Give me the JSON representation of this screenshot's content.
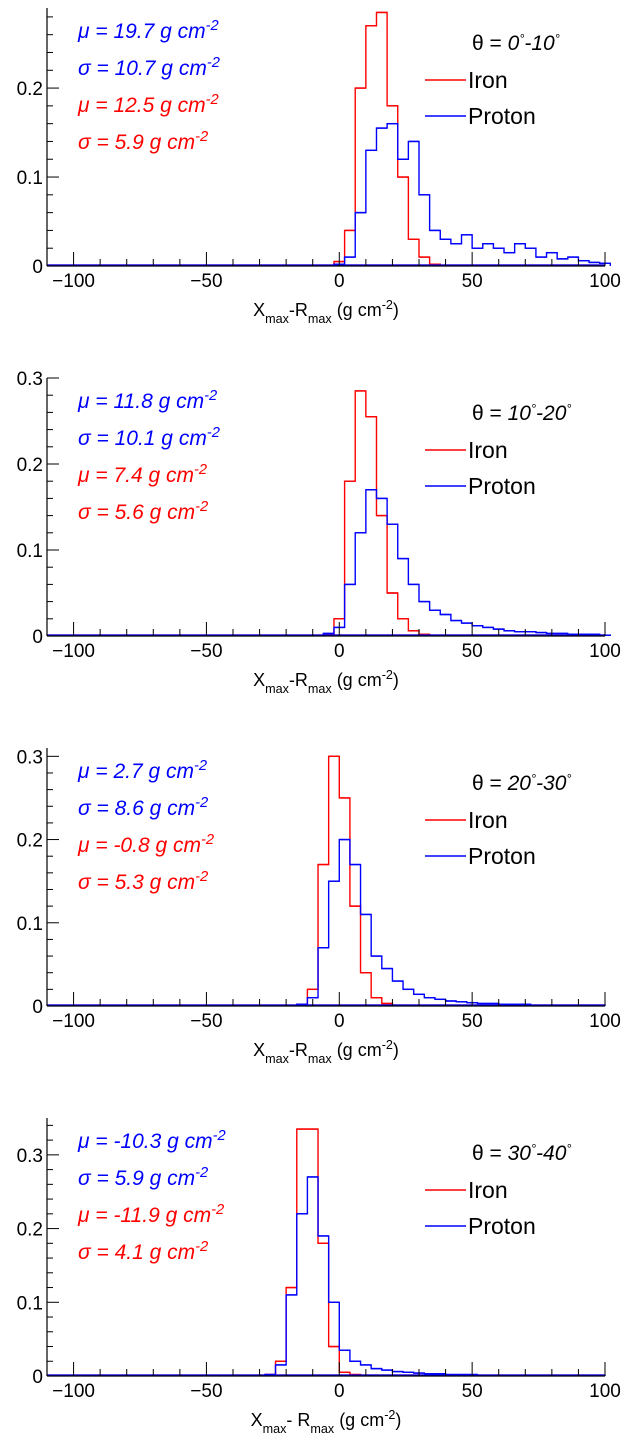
{
  "colors": {
    "iron": "#ff0000",
    "proton": "#0000ff",
    "axis": "#000000"
  },
  "chart_data": [
    {
      "type": "histogram",
      "theta_label": {
        "prefix": "θ = ",
        "value": "0°-10°"
      },
      "xlabel": "Xmax-Rmax (g cm-2)",
      "xlim": [
        -110,
        100
      ],
      "ylim": [
        0,
        0.29
      ],
      "x_ticks": [
        -100,
        -50,
        0,
        50,
        100
      ],
      "y_ticks": [
        0,
        0.1,
        0.2
      ],
      "y_tick_labels": [
        "0",
        "0.1",
        "0.2"
      ],
      "stats": [
        {
          "text": "μ = 19.7 g cm-2",
          "series": "Proton"
        },
        {
          "text": "σ = 10.7 g cm-2",
          "series": "Proton"
        },
        {
          "text": "μ = 12.5 g cm-2",
          "series": "Iron"
        },
        {
          "text": "σ = 5.9 g cm-2",
          "series": "Iron"
        }
      ],
      "bin_width": 4,
      "series": [
        {
          "name": "Iron",
          "bins_x_low": [
            -2,
            2,
            6,
            10,
            14,
            18,
            22,
            26,
            30,
            34
          ],
          "values": [
            0.005,
            0.04,
            0.2,
            0.27,
            0.285,
            0.18,
            0.1,
            0.03,
            0.01,
            0.002
          ]
        },
        {
          "name": "Proton",
          "bins_x_low": [
            -2,
            2,
            6,
            10,
            14,
            18,
            22,
            26,
            30,
            34,
            38,
            42,
            46,
            50,
            54,
            58,
            62,
            66,
            70,
            74,
            78,
            82,
            86,
            90,
            94,
            98
          ],
          "values": [
            0.002,
            0.01,
            0.06,
            0.13,
            0.155,
            0.16,
            0.12,
            0.14,
            0.08,
            0.04,
            0.03,
            0.025,
            0.035,
            0.02,
            0.025,
            0.02,
            0.015,
            0.025,
            0.02,
            0.01,
            0.015,
            0.008,
            0.01,
            0.006,
            0.004,
            0.003
          ]
        }
      ]
    },
    {
      "type": "histogram",
      "theta_label": {
        "prefix": "θ = ",
        "value": "10°-20°"
      },
      "xlabel": "Xmax-Rmax (g cm-2)",
      "xlim": [
        -110,
        100
      ],
      "ylim": [
        0,
        0.3
      ],
      "x_ticks": [
        -100,
        -50,
        0,
        50,
        100
      ],
      "y_ticks": [
        0,
        0.1,
        0.2,
        0.3
      ],
      "y_tick_labels": [
        "0",
        "0.1",
        "0.2",
        "0.3"
      ],
      "stats": [
        {
          "text": "μ = 11.8 g cm-2",
          "series": "Proton"
        },
        {
          "text": "σ = 10.1 g cm-2",
          "series": "Proton"
        },
        {
          "text": "μ = 7.4 g cm-2",
          "series": "Iron"
        },
        {
          "text": "σ = 5.6 g cm-2",
          "series": "Iron"
        }
      ],
      "bin_width": 4,
      "series": [
        {
          "name": "Iron",
          "bins_x_low": [
            -6,
            -2,
            2,
            6,
            10,
            14,
            18,
            22,
            26,
            30
          ],
          "values": [
            0.002,
            0.02,
            0.18,
            0.285,
            0.255,
            0.14,
            0.05,
            0.02,
            0.006,
            0.002
          ]
        },
        {
          "name": "Proton",
          "bins_x_low": [
            -6,
            -2,
            2,
            6,
            10,
            14,
            18,
            22,
            26,
            30,
            34,
            38,
            42,
            46,
            50,
            54,
            58,
            62,
            66,
            70,
            74,
            78,
            82,
            86,
            90,
            94,
            98
          ],
          "values": [
            0.003,
            0.01,
            0.06,
            0.12,
            0.17,
            0.16,
            0.13,
            0.09,
            0.06,
            0.04,
            0.03,
            0.025,
            0.018,
            0.015,
            0.012,
            0.01,
            0.008,
            0.006,
            0.005,
            0.005,
            0.004,
            0.003,
            0.003,
            0.002,
            0.002,
            0.002,
            0.001
          ]
        }
      ]
    },
    {
      "type": "histogram",
      "theta_label": {
        "prefix": "θ = ",
        "value": "20°-30°"
      },
      "xlabel": "Xmax-Rmax (g cm-2)",
      "xlim": [
        -110,
        100
      ],
      "ylim": [
        0,
        0.31
      ],
      "x_ticks": [
        -100,
        -50,
        0,
        50,
        100
      ],
      "y_ticks": [
        0,
        0.1,
        0.2,
        0.3
      ],
      "y_tick_labels": [
        "0",
        "0.1",
        "0.2",
        "0.3"
      ],
      "stats": [
        {
          "text": "μ = 2.7 g cm-2",
          "series": "Proton"
        },
        {
          "text": "σ = 8.6 g cm-2",
          "series": "Proton"
        },
        {
          "text": "μ = -0.8 g cm-2",
          "series": "Iron"
        },
        {
          "text": "σ = 5.3 g cm-2",
          "series": "Iron"
        }
      ],
      "bin_width": 4,
      "series": [
        {
          "name": "Iron",
          "bins_x_low": [
            -16,
            -12,
            -8,
            -4,
            0,
            4,
            8,
            12,
            16,
            20
          ],
          "values": [
            0.002,
            0.02,
            0.17,
            0.3,
            0.25,
            0.12,
            0.04,
            0.01,
            0.003,
            0.001
          ]
        },
        {
          "name": "Proton",
          "bins_x_low": [
            -16,
            -12,
            -8,
            -4,
            0,
            4,
            8,
            12,
            16,
            20,
            24,
            28,
            32,
            36,
            40,
            44,
            48,
            52,
            56,
            60,
            64,
            68,
            72,
            76,
            80,
            84,
            88,
            92,
            96
          ],
          "values": [
            0.002,
            0.01,
            0.07,
            0.15,
            0.2,
            0.17,
            0.11,
            0.06,
            0.045,
            0.03,
            0.02,
            0.014,
            0.01,
            0.008,
            0.006,
            0.005,
            0.004,
            0.003,
            0.003,
            0.002,
            0.002,
            0.002,
            0.001,
            0.001,
            0.001,
            0.001,
            0.001,
            0.001,
            0.001
          ]
        }
      ]
    },
    {
      "type": "histogram",
      "theta_label": {
        "prefix": "θ = ",
        "value": "30°-40°"
      },
      "xlabel": "Xmax- Rmax (g cm-2)",
      "xlim": [
        -110,
        100
      ],
      "ylim": [
        0,
        0.35
      ],
      "x_ticks": [
        -100,
        -50,
        0,
        50,
        100
      ],
      "y_ticks": [
        0,
        0.1,
        0.2,
        0.3
      ],
      "y_tick_labels": [
        "0",
        "0.1",
        "0.2",
        "0.3"
      ],
      "stats": [
        {
          "text": "μ = -10.3 g cm-2",
          "series": "Proton"
        },
        {
          "text": "σ = 5.9 g cm-2",
          "series": "Proton"
        },
        {
          "text": "μ = -11.9 g cm-2",
          "series": "Iron"
        },
        {
          "text": "σ = 4.1 g cm-2",
          "series": "Iron"
        }
      ],
      "bin_width": 4,
      "series": [
        {
          "name": "Iron",
          "bins_x_low": [
            -28,
            -24,
            -20,
            -16,
            -12,
            -8,
            -4,
            0,
            4
          ],
          "values": [
            0.002,
            0.02,
            0.12,
            0.335,
            0.335,
            0.18,
            0.04,
            0.005,
            0.002
          ]
        },
        {
          "name": "Proton",
          "bins_x_low": [
            -28,
            -24,
            -20,
            -16,
            -12,
            -8,
            -4,
            0,
            4,
            8,
            12,
            16,
            20,
            24,
            28,
            32,
            36,
            40,
            44,
            48,
            52,
            56,
            60,
            64,
            68,
            72,
            76,
            80,
            84,
            88,
            92,
            96
          ],
          "values": [
            0.002,
            0.015,
            0.11,
            0.22,
            0.27,
            0.19,
            0.1,
            0.035,
            0.02,
            0.015,
            0.01,
            0.008,
            0.006,
            0.005,
            0.004,
            0.003,
            0.003,
            0.002,
            0.002,
            0.002,
            0.001,
            0.001,
            0.001,
            0.001,
            0.001,
            0.001,
            0.001,
            0.001,
            0.001,
            0.001,
            0.001,
            0.001
          ]
        }
      ]
    }
  ]
}
